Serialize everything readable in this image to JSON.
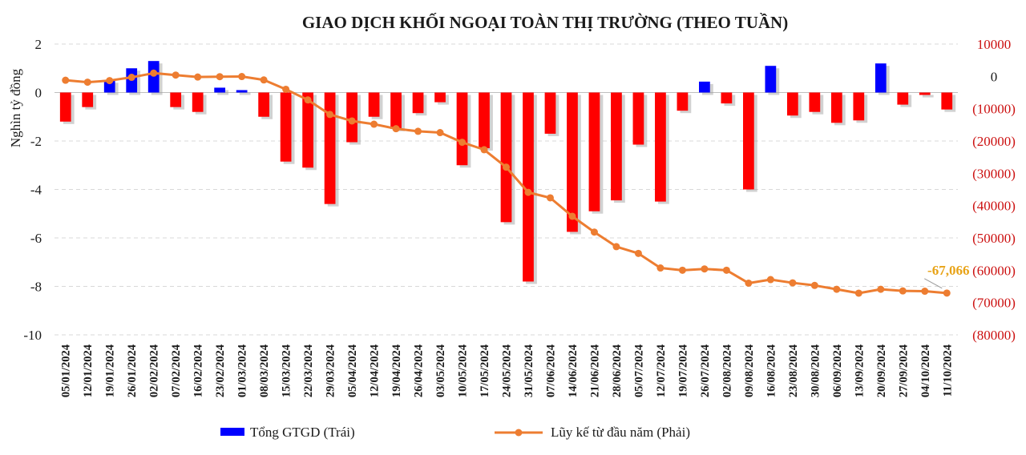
{
  "chart_data": {
    "type": "bar+line",
    "title": "GIAO DỊCH KHỐI NGOẠI TOÀN THỊ TRƯỜNG (THEO TUẦN)",
    "ylabel_left": "Nghìn tỷ đồng",
    "ylim_left": [
      -10,
      2
    ],
    "yticks_left": [
      2,
      0,
      -2,
      -4,
      -6,
      -8,
      -10
    ],
    "ylim_right": [
      -80000,
      10000
    ],
    "yticks_right": [
      10000,
      0,
      -10000,
      -20000,
      -30000,
      -40000,
      -50000,
      -60000,
      -70000,
      -80000
    ],
    "yticks_right_labels": [
      "10000",
      "0",
      "(10000)",
      "(20000)",
      "(30000)",
      "(40000)",
      "(50000)",
      "(60000)",
      "(70000)",
      "(80000)"
    ],
    "grid": true,
    "categories": [
      "05/01/2024",
      "12/01/2024",
      "19/01/2024",
      "26/01/2024",
      "02/02/2024",
      "07/02/2024",
      "16/02/2024",
      "23/02/2024",
      "01/03/2024",
      "08/03/2024",
      "15/03/2024",
      "22/03/2024",
      "29/03/2024",
      "05/04/2024",
      "12/04/2024",
      "19/04/2024",
      "26/04/2024",
      "03/05/2024",
      "10/05/2024",
      "17/05/2024",
      "24/05/2024",
      "31/05/2024",
      "07/06/2024",
      "14/06/2024",
      "21/06/2024",
      "28/06/2024",
      "05/07/2024",
      "12/07/2024",
      "19/07/2024",
      "26/07/2024",
      "02/08/2024",
      "09/08/2024",
      "16/08/2024",
      "23/08/2024",
      "30/08/2024",
      "06/09/2024",
      "13/09/2024",
      "20/09/2024",
      "27/09/2024",
      "04/10/2024",
      "11/10/2024"
    ],
    "series": [
      {
        "name": "Tổng GTGD (Trái)",
        "type": "bar",
        "axis": "left",
        "color_positive": "#0000ff",
        "color_negative": "#ff0000",
        "values": [
          -1.2,
          -0.6,
          0.5,
          1.0,
          1.3,
          -0.6,
          -0.8,
          0.2,
          0.1,
          -1.0,
          -2.85,
          -3.1,
          -4.6,
          -2.05,
          -1.0,
          -1.5,
          -0.85,
          -0.4,
          -3.0,
          -2.3,
          -5.35,
          -7.8,
          -1.7,
          -5.75,
          -4.9,
          -4.45,
          -2.15,
          -4.5,
          -0.75,
          0.45,
          -0.45,
          -4.0,
          1.1,
          -0.95,
          -0.8,
          -1.25,
          -1.15,
          1.2,
          -0.5,
          -0.1,
          -0.7
        ]
      },
      {
        "name": "Lũy kế từ đầu năm (Phải)",
        "type": "line",
        "axis": "right",
        "color": "#ed7d31",
        "values": [
          -1200,
          -1800,
          -1300,
          -300,
          1000,
          400,
          -200,
          -100,
          -50,
          -1100,
          -4000,
          -7300,
          -11800,
          -13800,
          -14800,
          -16200,
          -17000,
          -17400,
          -20400,
          -22700,
          -28100,
          -35900,
          -37600,
          -43300,
          -48200,
          -52700,
          -54800,
          -59300,
          -60000,
          -59600,
          -60000,
          -64000,
          -62900,
          -63900,
          -64700,
          -65900,
          -67100,
          -65900,
          -66400,
          -66500,
          -67066
        ]
      }
    ],
    "annotation": {
      "text": "-67,066",
      "color": "#e8a317"
    },
    "legend_placement": "bottom"
  }
}
